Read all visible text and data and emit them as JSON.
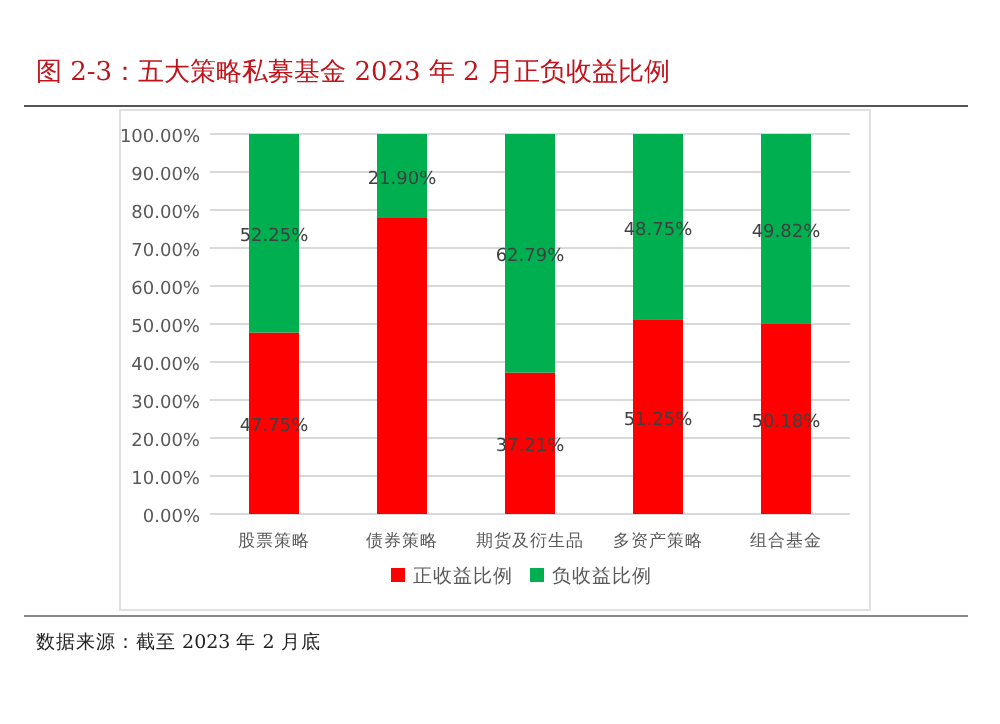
{
  "chart_data": {
    "type": "bar",
    "stacked": true,
    "title": "图 2-3：五大策略私募基金 2023 年 2 月正负收益比例",
    "categories": [
      "股票策略",
      "债券策略",
      "期货及衍生品",
      "多资产策略",
      "组合基金"
    ],
    "series": [
      {
        "name": "正收益比例",
        "color": "#ff0000",
        "values": [
          47.75,
          78.1,
          37.21,
          51.25,
          50.18
        ],
        "value_labels": [
          "47.75%",
          null,
          "37.21%",
          "51.25%",
          "50.18%"
        ]
      },
      {
        "name": "负收益比例",
        "color": "#00b050",
        "values": [
          52.25,
          21.9,
          62.79,
          48.75,
          49.82
        ],
        "value_labels": [
          "52.25%",
          "21.90%",
          "62.79%",
          "48.75%",
          "49.82%"
        ]
      }
    ],
    "ylim": [
      0,
      100
    ],
    "yticks": [
      {
        "value": 0,
        "label": "0.00%"
      },
      {
        "value": 10,
        "label": "10.00%"
      },
      {
        "value": 20,
        "label": "20.00%"
      },
      {
        "value": 30,
        "label": "30.00%"
      },
      {
        "value": 40,
        "label": "40.00%"
      },
      {
        "value": 50,
        "label": "50.00%"
      },
      {
        "value": 60,
        "label": "60.00%"
      },
      {
        "value": 70,
        "label": "70.00%"
      },
      {
        "value": 80,
        "label": "80.00%"
      },
      {
        "value": 90,
        "label": "90.00%"
      },
      {
        "value": 100,
        "label": "100.00%"
      }
    ],
    "grid": "y",
    "legend": "bottom",
    "annotations": [
      "数据来源：截至 2023 年 2 月底"
    ]
  }
}
